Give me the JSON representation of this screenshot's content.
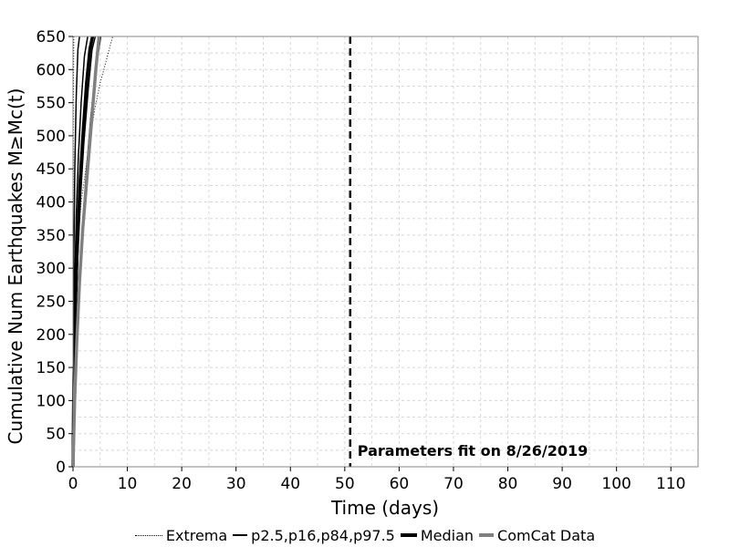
{
  "chart_data": {
    "type": "line",
    "title": "",
    "xlabel": "Time (days)",
    "ylabel": "Cumulative Num Earthquakes M≥Mc(t)",
    "xlim": [
      0,
      115
    ],
    "ylim": [
      0,
      650
    ],
    "xticks": [
      0,
      10,
      20,
      30,
      40,
      50,
      60,
      70,
      80,
      90,
      100,
      110
    ],
    "yticks": [
      0,
      50,
      100,
      150,
      200,
      250,
      300,
      350,
      400,
      450,
      500,
      550,
      600,
      650
    ],
    "grid": true,
    "legend_position": "bottom",
    "annotation": {
      "x": 51,
      "text": "Parameters fit on 8/26/2019",
      "style": "dashed-vertical"
    },
    "series": [
      {
        "name": "Extrema",
        "style": "dotted",
        "color": "#000000",
        "width": 1,
        "x": [
          0,
          0.1,
          0.3,
          0.6,
          1.0,
          1.5,
          2.2,
          3.0,
          4.0,
          5.0,
          6.0,
          7.3
        ],
        "y": [
          0,
          130,
          230,
          300,
          350,
          400,
          440,
          490,
          540,
          580,
          610,
          650
        ]
      },
      {
        "name": "Extrema",
        "style": "dotted",
        "color": "#000000",
        "width": 1,
        "x": [
          0,
          0.02,
          0.05,
          0.1,
          0.15
        ],
        "y": [
          0,
          300,
          500,
          620,
          650
        ]
      },
      {
        "name": "p2.5,p16,p84,p97.5",
        "style": "solid",
        "color": "#000000",
        "width": 1.5,
        "x": [
          0,
          0.3,
          0.7,
          1.2,
          1.8,
          2.5,
          3.3,
          4.2,
          5.1
        ],
        "y": [
          0,
          110,
          200,
          290,
          370,
          450,
          530,
          600,
          650
        ]
      },
      {
        "name": "p2.5,p16,p84,p97.5",
        "style": "solid",
        "color": "#000000",
        "width": 1.5,
        "x": [
          0,
          0.2,
          0.5,
          0.9,
          1.4,
          2.0,
          2.8,
          3.5,
          4.1
        ],
        "y": [
          0,
          120,
          220,
          320,
          410,
          490,
          570,
          630,
          650
        ]
      },
      {
        "name": "p2.5,p16,p84,p97.5",
        "style": "solid",
        "color": "#000000",
        "width": 1.5,
        "x": [
          0,
          0.1,
          0.3,
          0.6,
          1.0,
          1.5,
          2.1,
          2.7
        ],
        "y": [
          0,
          140,
          270,
          380,
          470,
          550,
          620,
          650
        ]
      },
      {
        "name": "p2.5,p16,p84,p97.5",
        "style": "solid",
        "color": "#000000",
        "width": 1.5,
        "x": [
          0,
          0.05,
          0.15,
          0.35,
          0.6,
          0.9,
          1.2
        ],
        "y": [
          0,
          160,
          320,
          460,
          560,
          630,
          650
        ]
      },
      {
        "name": "Median",
        "style": "solid",
        "color": "#000000",
        "width": 3.5,
        "x": [
          0,
          0.15,
          0.4,
          0.8,
          1.3,
          1.9,
          2.5,
          3.1,
          3.6
        ],
        "y": [
          0,
          130,
          240,
          340,
          430,
          510,
          580,
          630,
          650
        ]
      },
      {
        "name": "ComCat Data",
        "style": "solid",
        "color": "#808080",
        "width": 3.5,
        "x": [
          0,
          0.3,
          0.7,
          1.2,
          1.8,
          2.6,
          3.4,
          4.2,
          4.8
        ],
        "y": [
          0,
          100,
          190,
          280,
          360,
          440,
          520,
          600,
          650
        ]
      }
    ]
  },
  "legend": {
    "extrema": "Extrema",
    "percentiles": "p2.5,p16,p84,p97.5",
    "median": "Median",
    "comcat": "ComCat Data"
  }
}
